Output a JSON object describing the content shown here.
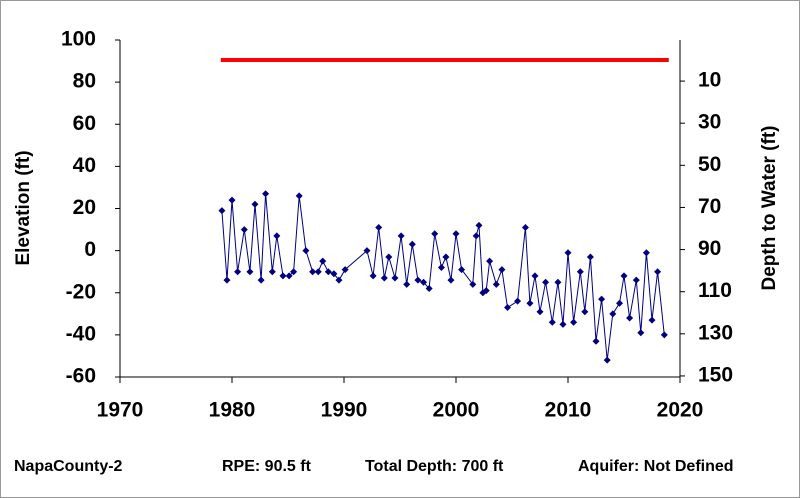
{
  "chart_data": {
    "type": "line",
    "ylabel": "Elevation (ft)",
    "y2label": "Depth to Water (ft)",
    "x": [
      1979.1,
      1979.55,
      1980.0,
      1980.5,
      1981.1,
      1981.6,
      1982.05,
      1982.6,
      1983.0,
      1983.6,
      1984.0,
      1984.55,
      1985.1,
      1985.5,
      1986.0,
      1986.6,
      1987.2,
      1987.7,
      1988.1,
      1988.6,
      1989.1,
      1989.55,
      1990.1,
      1992.05,
      1992.6,
      1993.1,
      1993.6,
      1994.0,
      1994.55,
      1995.1,
      1995.6,
      1996.1,
      1996.6,
      1997.1,
      1997.6,
      1998.1,
      1998.7,
      1999.1,
      1999.55,
      2000.0,
      2000.5,
      2001.5,
      2001.8,
      2002.05,
      2002.4,
      2002.7,
      2003.0,
      2003.6,
      2004.1,
      2004.6,
      2005.5,
      2006.2,
      2006.6,
      2007.05,
      2007.5,
      2008.0,
      2008.6,
      2009.1,
      2009.55,
      2010.0,
      2010.5,
      2011.1,
      2011.5,
      2012.0,
      2012.5,
      2013.0,
      2013.5,
      2014.0,
      2014.6,
      2015.0,
      2015.5,
      2016.1,
      2016.5,
      2017.0,
      2017.5,
      2018.0,
      2018.6
    ],
    "values": [
      19,
      -14,
      24,
      -10,
      10,
      -10,
      22,
      -14,
      27,
      -10,
      7,
      -12,
      -12,
      -10,
      26,
      0,
      -10,
      -10,
      -5,
      -10,
      -11,
      -14,
      -9,
      0,
      -12,
      11,
      -13,
      -3,
      -13,
      7,
      -16,
      3,
      -14,
      -15,
      -18,
      8,
      -8,
      -3,
      -14,
      8,
      -9,
      -16,
      7,
      12,
      -20,
      -19,
      -5,
      -16,
      -9,
      -27,
      -24,
      11,
      -25,
      -12,
      -29,
      -15,
      -34,
      -15,
      -35,
      -1,
      -34,
      -10,
      -29,
      -3,
      -43,
      -23,
      -52,
      -30,
      -25,
      -12,
      -32,
      -14,
      -39,
      -1,
      -33,
      -10,
      -40
    ],
    "color": "#000080",
    "reference_line": {
      "x": [
        1979,
        2019
      ],
      "value": 90.5,
      "color": "#ff0000"
    },
    "xlim": [
      1970,
      2020
    ],
    "xticks": [
      1970,
      1980,
      1990,
      2000,
      2010,
      2020
    ],
    "ylim": [
      -60,
      100
    ],
    "yticks": [
      -60,
      -40,
      -20,
      0,
      20,
      40,
      60,
      80,
      100
    ],
    "y2lim": [
      -9.5,
      150.5
    ],
    "y2ticks": [
      10,
      30,
      50,
      70,
      90,
      110,
      130,
      150
    ],
    "y2_inverted": true,
    "grid": false
  },
  "footer": [
    "NapaCounty-2",
    "RPE: 90.5 ft",
    "Total Depth: 700 ft",
    "Aquifer: Not Defined"
  ]
}
